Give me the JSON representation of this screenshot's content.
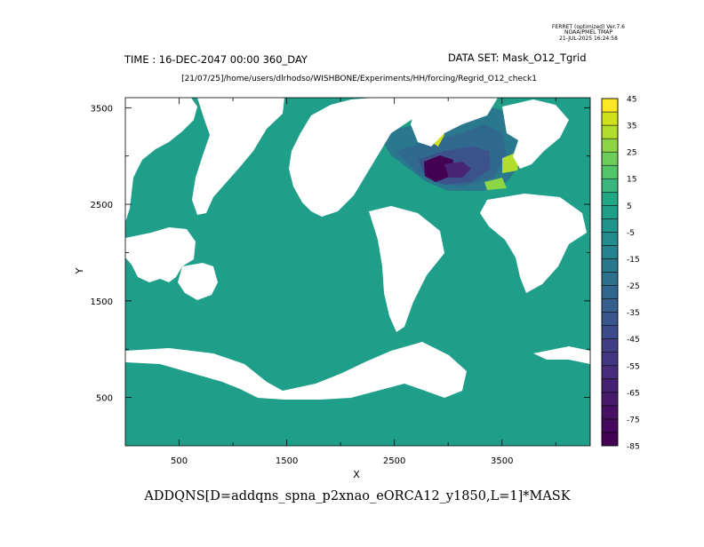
{
  "chart_data": {
    "type": "heatmap",
    "header": {
      "program": "FERRET (optimized) Ver.7.6",
      "org": "NOAA/PMEL TMAP",
      "date": "21-JUL-2025 16:24:58"
    },
    "time_label": "TIME : 16-DEC-2047 00:00 360_DAY",
    "dataset_label": "DATA SET: Mask_O12_Tgrid",
    "path_label": "[21/07/25]/home/users/dlrhodso/WISHBONE/Experiments/HH/forcing/Regrid_O12_check1",
    "title": "ADDQNS[D=addqns_spna_p2xnao_eORCA12_y1850,L=1]*MASK",
    "xlabel": "X",
    "ylabel": "Y",
    "xlim": [
      0,
      4320
    ],
    "ylim": [
      0,
      3604
    ],
    "x_ticks": [
      500,
      1500,
      2500,
      3500
    ],
    "x_minor": [
      1000,
      2000,
      3000,
      4000
    ],
    "y_ticks": [
      500,
      1500,
      2500,
      3500
    ],
    "y_minor": [
      1000,
      2000,
      3000
    ],
    "background_value": 0,
    "colorbar": {
      "levels": [
        -85,
        -80,
        -75,
        -70,
        -65,
        -60,
        -55,
        -50,
        -45,
        -40,
        -35,
        -30,
        -25,
        -20,
        -15,
        -10,
        -5,
        0,
        5,
        10,
        15,
        20,
        25,
        30,
        35,
        40,
        45
      ],
      "labels": [
        "45",
        "35",
        "25",
        "15",
        "5",
        "-5",
        "-15",
        "-25",
        "-35",
        "-45",
        "-55",
        "-65",
        "-75",
        "-85"
      ],
      "colors": [
        "#440154",
        "#46085c",
        "#471063",
        "#481a6c",
        "#472171",
        "#462c7b",
        "#433680",
        "#413e84",
        "#3c4c8a",
        "#38568c",
        "#355f8d",
        "#31678e",
        "#2d708e",
        "#29798e",
        "#26828e",
        "#228b8d",
        "#1f958b",
        "#1f9e89",
        "#21a784",
        "#3ab67c",
        "#52c569",
        "#6ccd5a",
        "#8dd544",
        "#b2dd2d",
        "#d0e11c",
        "#fde725"
      ]
    }
  }
}
